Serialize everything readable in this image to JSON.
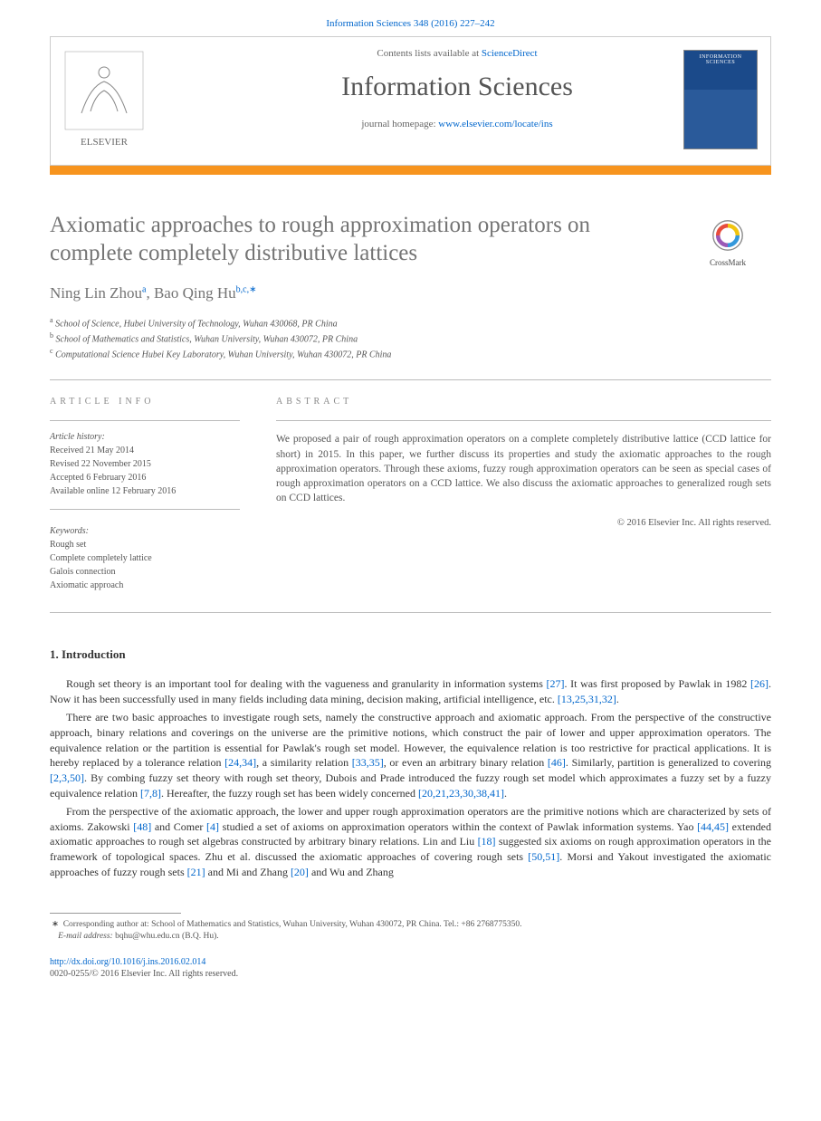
{
  "citation": "Information Sciences 348 (2016) 227–242",
  "header": {
    "contents_prefix": "Contents lists available at ",
    "contents_link": "ScienceDirect",
    "journal_name": "Information Sciences",
    "homepage_prefix": "journal homepage: ",
    "homepage_url": "www.elsevier.com/locate/ins",
    "cover_title": "INFORMATION SCIENCES",
    "publisher": "ELSEVIER"
  },
  "colors": {
    "link": "#0066cc",
    "accent_bar": "#f7941e",
    "title_grey": "#747474",
    "text": "#333333",
    "muted": "#555555"
  },
  "title": "Axiomatic approaches to rough approximation operators on complete completely distributive lattices",
  "crossmark": "CrossMark",
  "authors_html": "Ning Lin Zhou|a|, Bao Qing Hu|b,c,∗",
  "authors": [
    {
      "name": "Ning Lin Zhou",
      "sup": "a"
    },
    {
      "name": "Bao Qing Hu",
      "sup": "b,c,",
      "corr": true
    }
  ],
  "affiliations": [
    {
      "sup": "a",
      "text": "School of Science, Hubei University of Technology, Wuhan 430068, PR China"
    },
    {
      "sup": "b",
      "text": "School of Mathematics and Statistics, Wuhan University, Wuhan 430072, PR China"
    },
    {
      "sup": "c",
      "text": "Computational Science Hubei Key Laboratory, Wuhan University, Wuhan 430072, PR China"
    }
  ],
  "article_info_label": "ARTICLE INFO",
  "abstract_label": "ABSTRACT",
  "history_label": "Article history:",
  "history": [
    "Received 21 May 2014",
    "Revised 22 November 2015",
    "Accepted 6 February 2016",
    "Available online 12 February 2016"
  ],
  "keywords_label": "Keywords:",
  "keywords": [
    "Rough set",
    "Complete completely lattice",
    "Galois connection",
    "Axiomatic approach"
  ],
  "abstract": "We proposed a pair of rough approximation operators on a complete completely distributive lattice (CCD lattice for short) in 2015. In this paper, we further discuss its properties and study the axiomatic approaches to the rough approximation operators. Through these axioms, fuzzy rough approximation operators can be seen as special cases of rough approximation operators on a CCD lattice. We also discuss the axiomatic approaches to generalized rough sets on CCD lattices.",
  "abstract_copyright": "© 2016 Elsevier Inc. All rights reserved.",
  "section1_heading": "1. Introduction",
  "paragraphs": [
    {
      "segments": [
        {
          "t": "Rough set theory is an important tool for dealing with the vagueness and granularity in information systems "
        },
        {
          "t": "[27]",
          "ref": true
        },
        {
          "t": ". It was first proposed by Pawlak in 1982 "
        },
        {
          "t": "[26]",
          "ref": true
        },
        {
          "t": ". Now it has been successfully used in many fields including data mining, decision making, artificial intelligence, etc. "
        },
        {
          "t": "[13,25,31,32]",
          "ref": true
        },
        {
          "t": "."
        }
      ]
    },
    {
      "segments": [
        {
          "t": "There are two basic approaches to investigate rough sets, namely the constructive approach and axiomatic approach. From the perspective of the constructive approach, binary relations and coverings on the universe are the primitive notions, which construct the pair of lower and upper approximation operators. The equivalence relation or the partition is essential for Pawlak's rough set model. However, the equivalence relation is too restrictive for practical applications. It is hereby replaced by a tolerance relation "
        },
        {
          "t": "[24,34]",
          "ref": true
        },
        {
          "t": ", a similarity relation "
        },
        {
          "t": "[33,35]",
          "ref": true
        },
        {
          "t": ", or even an arbitrary binary relation "
        },
        {
          "t": "[46]",
          "ref": true
        },
        {
          "t": ". Similarly, partition is generalized to covering "
        },
        {
          "t": "[2,3,50]",
          "ref": true
        },
        {
          "t": ". By combing fuzzy set theory with rough set theory, Dubois and Prade introduced the fuzzy rough set model which approximates a fuzzy set by a fuzzy equivalence relation "
        },
        {
          "t": "[7,8]",
          "ref": true
        },
        {
          "t": ". Hereafter, the fuzzy rough set has been widely concerned "
        },
        {
          "t": "[20,21,23,30,38,41]",
          "ref": true
        },
        {
          "t": "."
        }
      ]
    },
    {
      "segments": [
        {
          "t": "From the perspective of the axiomatic approach, the lower and upper rough approximation operators are the primitive notions which are characterized by sets of axioms. Zakowski "
        },
        {
          "t": "[48]",
          "ref": true
        },
        {
          "t": " and Comer "
        },
        {
          "t": "[4]",
          "ref": true
        },
        {
          "t": " studied a set of axioms on approximation operators within the context of Pawlak information systems. Yao "
        },
        {
          "t": "[44,45]",
          "ref": true
        },
        {
          "t": " extended axiomatic approaches to rough set algebras constructed by arbitrary binary relations. Lin and Liu "
        },
        {
          "t": "[18]",
          "ref": true
        },
        {
          "t": " suggested six axioms on rough approximation operators in the framework of topological spaces. Zhu et al. discussed the axiomatic approaches of covering rough sets "
        },
        {
          "t": "[50,51]",
          "ref": true
        },
        {
          "t": ". Morsi and Yakout investigated the axiomatic approaches of fuzzy rough sets "
        },
        {
          "t": "[21]",
          "ref": true
        },
        {
          "t": " and Mi and Zhang "
        },
        {
          "t": "[20]",
          "ref": true
        },
        {
          "t": " and Wu and Zhang"
        }
      ]
    }
  ],
  "footnote": {
    "corr": "∗",
    "text": "Corresponding author at: School of Mathematics and Statistics, Wuhan University, Wuhan 430072, PR China. Tel.: +86 2768775350.",
    "email_label": "E-mail address:",
    "email": "bqhu@whu.edu.cn",
    "email_who": "(B.Q. Hu)."
  },
  "doi": "http://dx.doi.org/10.1016/j.ins.2016.02.014",
  "issn_copy": "0020-0255/© 2016 Elsevier Inc. All rights reserved."
}
